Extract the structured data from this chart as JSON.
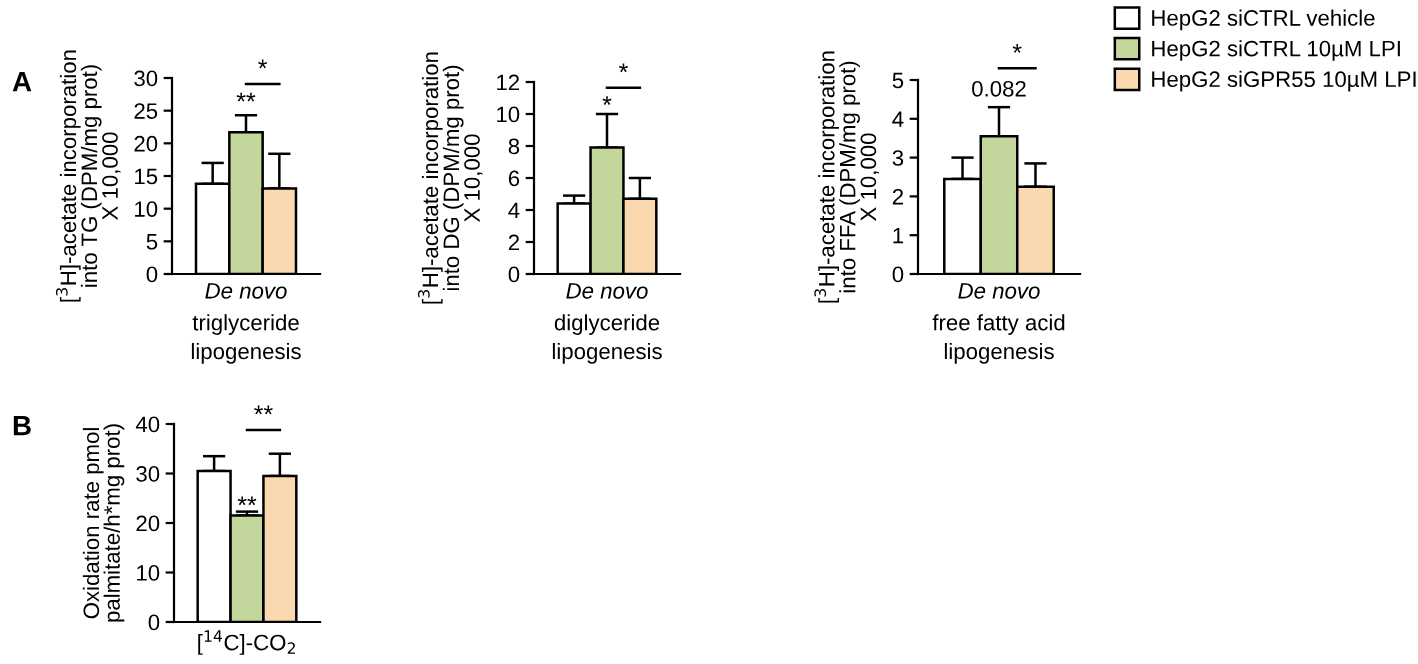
{
  "chart_data": [
    {
      "type": "bar",
      "ylabel": "[$^{3}$H]-acetate incorporation\ninto TG (DPM/mg prot)\nX 10,000",
      "xlabel": "triglyceride\nlipogenesis",
      "categories": [
        "De novo"
      ],
      "ylim": [
        0,
        30
      ],
      "yticks": [
        0,
        5,
        10,
        15,
        20,
        25,
        30
      ],
      "grid": false,
      "legend": false,
      "series": [
        {
          "color": "#ffffff",
          "values": [
            13.8
          ],
          "errors": [
            [
              13.8,
              17.0
            ]
          ]
        },
        {
          "color": "#c3d69b",
          "values": [
            21.7
          ],
          "errors": [
            [
              21.7,
              24.3
            ]
          ]
        },
        {
          "color": "#fad9b0",
          "values": [
            13.1
          ],
          "errors": [
            [
              13.1,
              18.4
            ]
          ]
        }
      ],
      "annotations": [
        "A",
        "*",
        "**"
      ]
    },
    {
      "type": "bar",
      "ylabel": "[$^{3}$H]-acetate incorporation\ninto DG (DPM/mg prot)\nX 10,000",
      "xlabel": "diglyceride\nlipogenesis",
      "categories": [
        "De novo"
      ],
      "ylim": [
        0,
        12
      ],
      "yticks": [
        0,
        2,
        4,
        6,
        8,
        10,
        12
      ],
      "grid": false,
      "legend": false,
      "series": [
        {
          "color": "#ffffff",
          "values": [
            4.4
          ],
          "errors": [
            [
              4.4,
              4.9
            ]
          ]
        },
        {
          "color": "#c3d69b",
          "values": [
            7.9
          ],
          "errors": [
            [
              7.9,
              10.0
            ]
          ]
        },
        {
          "color": "#fad9b0",
          "values": [
            4.7
          ],
          "errors": [
            [
              4.7,
              6.0
            ]
          ]
        }
      ],
      "annotations": [
        "*",
        "*"
      ]
    },
    {
      "type": "bar",
      "ylabel": "[$^{3}$H]-acetate incorporation\ninto FFA (DPM/mg prot)\nX 10,000",
      "xlabel": "free fatty acid\nlipogenesis",
      "categories": [
        "De novo"
      ],
      "ylim": [
        0,
        5
      ],
      "yticks": [
        0,
        1,
        2,
        3,
        4,
        5
      ],
      "grid": false,
      "legend": "right",
      "series": [
        {
          "name": "HepG2 siCTRL vehicle",
          "color": "#ffffff",
          "values": [
            2.45
          ],
          "errors": [
            [
              2.45,
              3.0
            ]
          ]
        },
        {
          "name": "HepG2 siCTRL 10µM LPI",
          "color": "#c3d69b",
          "values": [
            3.55
          ],
          "errors": [
            [
              3.55,
              4.3
            ]
          ]
        },
        {
          "name": "HepG2 siGPR55 10µM LPI",
          "color": "#fad9b0",
          "values": [
            2.25
          ],
          "errors": [
            [
              2.25,
              2.85
            ]
          ]
        }
      ],
      "annotations": [
        "*",
        "0.082"
      ]
    },
    {
      "type": "bar",
      "ylabel": "Oxidation rate pmol\npalmitate/h*mg prot)",
      "categories": [
        "[$^{14}$C]-CO$_{2}$"
      ],
      "ylim": [
        0,
        40
      ],
      "yticks": [
        0,
        10,
        20,
        30,
        40
      ],
      "grid": false,
      "legend": false,
      "series": [
        {
          "color": "#ffffff",
          "values": [
            30.5
          ],
          "errors": [
            [
              30.5,
              33.5
            ]
          ]
        },
        {
          "color": "#c3d69b",
          "values": [
            21.5
          ],
          "errors": [
            [
              21.5,
              22.3
            ]
          ]
        },
        {
          "color": "#fad9b0",
          "values": [
            29.5
          ],
          "errors": [
            [
              29.5,
              34.0
            ]
          ]
        }
      ],
      "annotations": [
        "B",
        "**",
        "**"
      ]
    }
  ]
}
